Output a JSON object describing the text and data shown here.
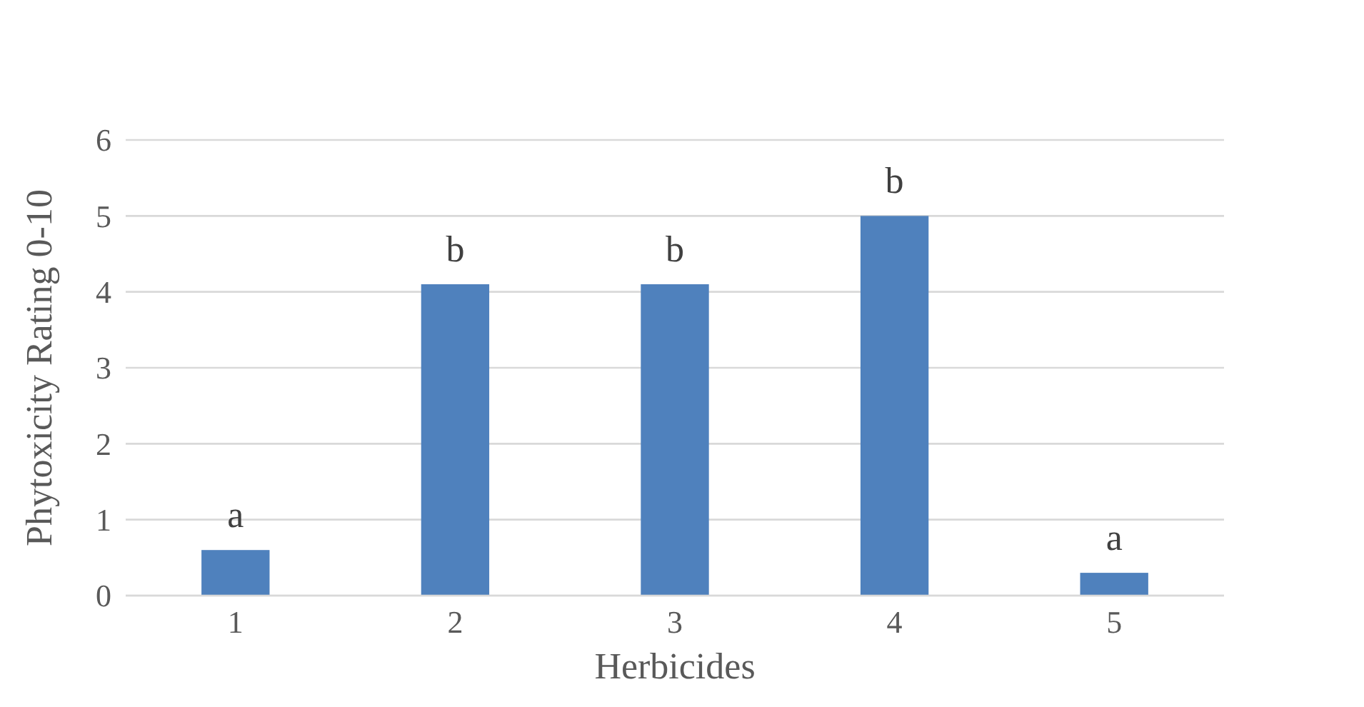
{
  "chart_data": {
    "type": "bar",
    "xlabel": "Herbicides",
    "ylabel": "Phytoxicity Rating 0-10",
    "categories": [
      "1",
      "2",
      "3",
      "4",
      "5"
    ],
    "values": [
      0.6,
      4.1,
      4.1,
      5.0,
      0.3
    ],
    "color": "#4f81bd",
    "ylim": [
      0,
      6
    ],
    "yticks": [
      0,
      1,
      2,
      3,
      4,
      5,
      6
    ],
    "grid": "y",
    "annotations": [
      {
        "text": "a",
        "x": "1",
        "y": 0.6
      },
      {
        "text": "b",
        "x": "2",
        "y": 4.1
      },
      {
        "text": "b",
        "x": "3",
        "y": 4.1
      },
      {
        "text": "b",
        "x": "4",
        "y": 5.0
      },
      {
        "text": "a",
        "x": "5",
        "y": 0.3
      }
    ]
  }
}
